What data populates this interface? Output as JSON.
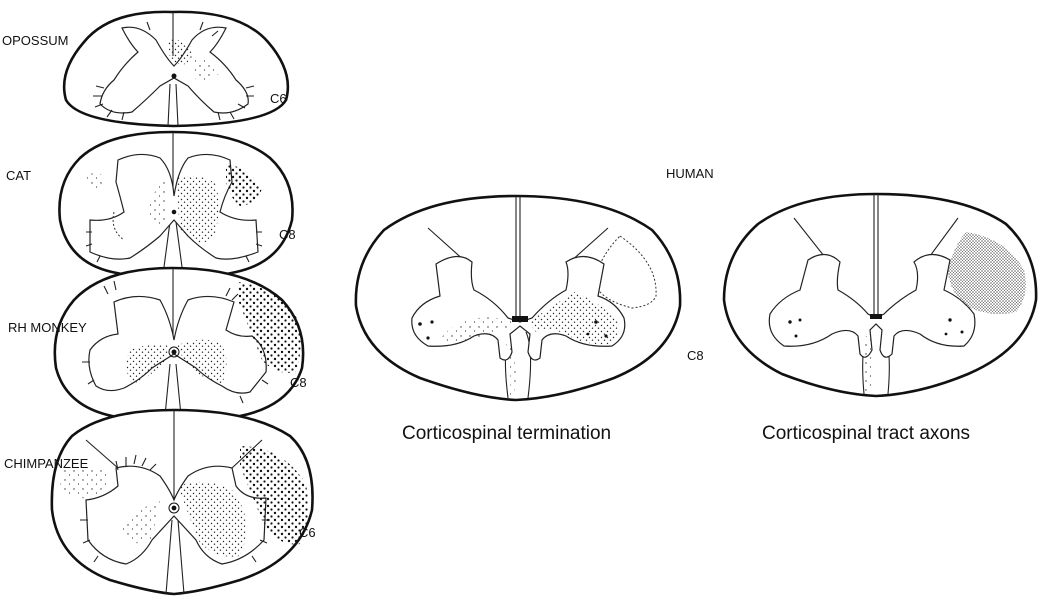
{
  "species": [
    {
      "name": "OPOSSUM",
      "level": "C6"
    },
    {
      "name": "CAT",
      "level": "C8"
    },
    {
      "name": "RH MONKEY",
      "level": "C8"
    },
    {
      "name": "CHIMPANZEE",
      "level": "C6"
    }
  ],
  "human": {
    "title": "HUMAN",
    "level": "C8",
    "left_caption": "Corticospinal termination",
    "right_caption": "Corticospinal tract axons"
  }
}
